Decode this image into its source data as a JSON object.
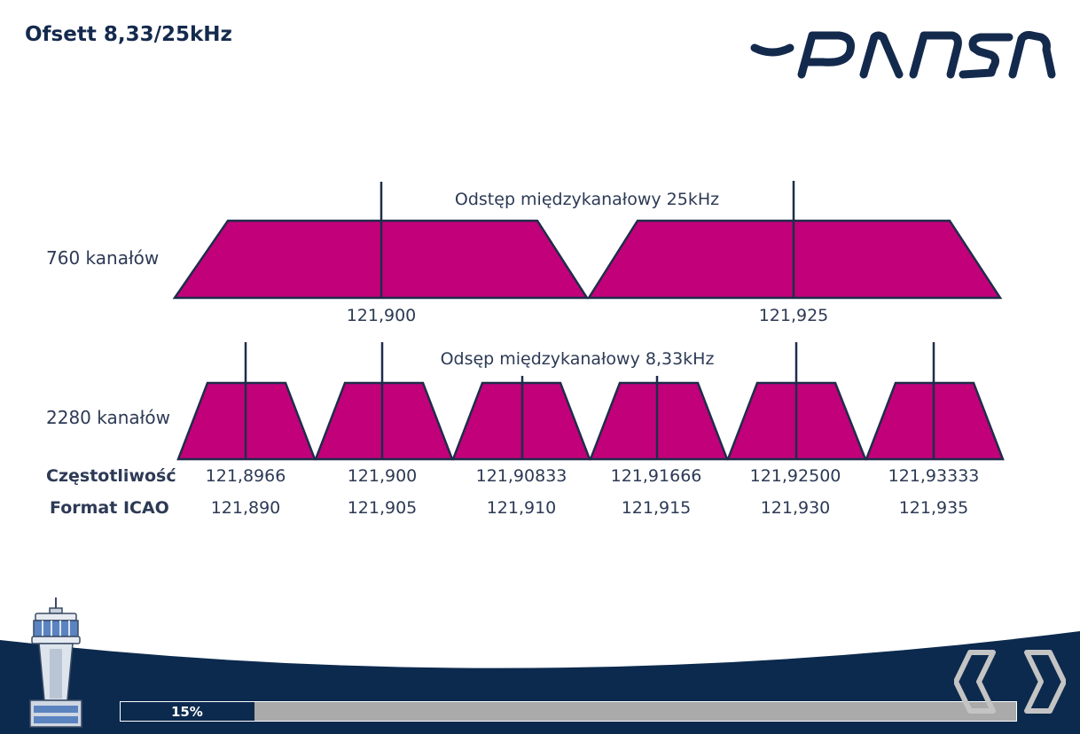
{
  "header": {
    "title": "Ofsett 8,33/25kHz"
  },
  "logo": {
    "text": "PANSA",
    "color": "#142a4d"
  },
  "diagram": {
    "top": {
      "row_label": "760 kanałów",
      "spacing_label": "Odstęp międzykanałowy 25kHz",
      "channels": [
        "121,900",
        "121,925"
      ]
    },
    "bottom": {
      "row_label": "2280 kanałów",
      "spacing_label": "Odsęp międzykanałowy 8,33kHz",
      "freq_label": "Częstotliwość",
      "icao_label": "Format ICAO",
      "channels": [
        {
          "freq": "121,8966",
          "icao": "121,890"
        },
        {
          "freq": "121,900",
          "icao": "121,905"
        },
        {
          "freq": "121,90833",
          "icao": "121,910"
        },
        {
          "freq": "121,91666",
          "icao": "121,915"
        },
        {
          "freq": "121,92500",
          "icao": "121,930"
        },
        {
          "freq": "121,93333",
          "icao": "121,935"
        }
      ]
    },
    "fill_color": "#c2007a",
    "stroke_color": "#1f2d4a"
  },
  "progress": {
    "value": 15,
    "label": "15%",
    "fill_color": "#0c2a4e",
    "track_color": "#aaaaaa"
  },
  "nav": {
    "prev_icon": "chevron-left-icon",
    "next_icon": "chevron-right-icon"
  },
  "footer": {
    "wave_color": "#0c2a4e",
    "tower_icon": "control-tower-icon"
  }
}
